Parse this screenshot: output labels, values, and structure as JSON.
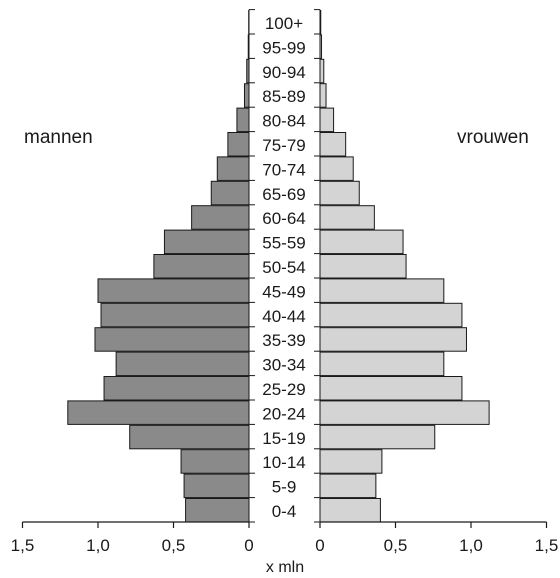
{
  "chart_data": {
    "type": "bar",
    "orientation": "horizontal",
    "layout": "population-pyramid",
    "left_label": "mannen",
    "right_label": "vrouwen",
    "xlabel": "x mln",
    "xlim": [
      0,
      1.5
    ],
    "x_tick_labels": [
      "0",
      "0,5",
      "1,0",
      "1,5"
    ],
    "categories": [
      "0-4",
      "5-9",
      "10-14",
      "15-19",
      "20-24",
      "25-29",
      "30-34",
      "35-39",
      "40-44",
      "45-49",
      "50-54",
      "55-59",
      "60-64",
      "65-69",
      "70-74",
      "75-79",
      "80-84",
      "85-89",
      "90-94",
      "95-99",
      "100+"
    ],
    "series": [
      {
        "name": "mannen",
        "color": "#8a8a8a",
        "values": [
          0.42,
          0.43,
          0.45,
          0.79,
          1.2,
          0.96,
          0.88,
          1.02,
          0.98,
          1.0,
          0.63,
          0.56,
          0.38,
          0.25,
          0.21,
          0.14,
          0.08,
          0.03,
          0.015,
          0.005,
          0.002
        ]
      },
      {
        "name": "vrouwen",
        "color": "#d4d4d4",
        "values": [
          0.4,
          0.37,
          0.41,
          0.76,
          1.12,
          0.94,
          0.82,
          0.97,
          0.94,
          0.82,
          0.57,
          0.55,
          0.36,
          0.26,
          0.22,
          0.17,
          0.09,
          0.04,
          0.025,
          0.01,
          0.005
        ]
      }
    ],
    "grid": false,
    "legend": "none"
  }
}
